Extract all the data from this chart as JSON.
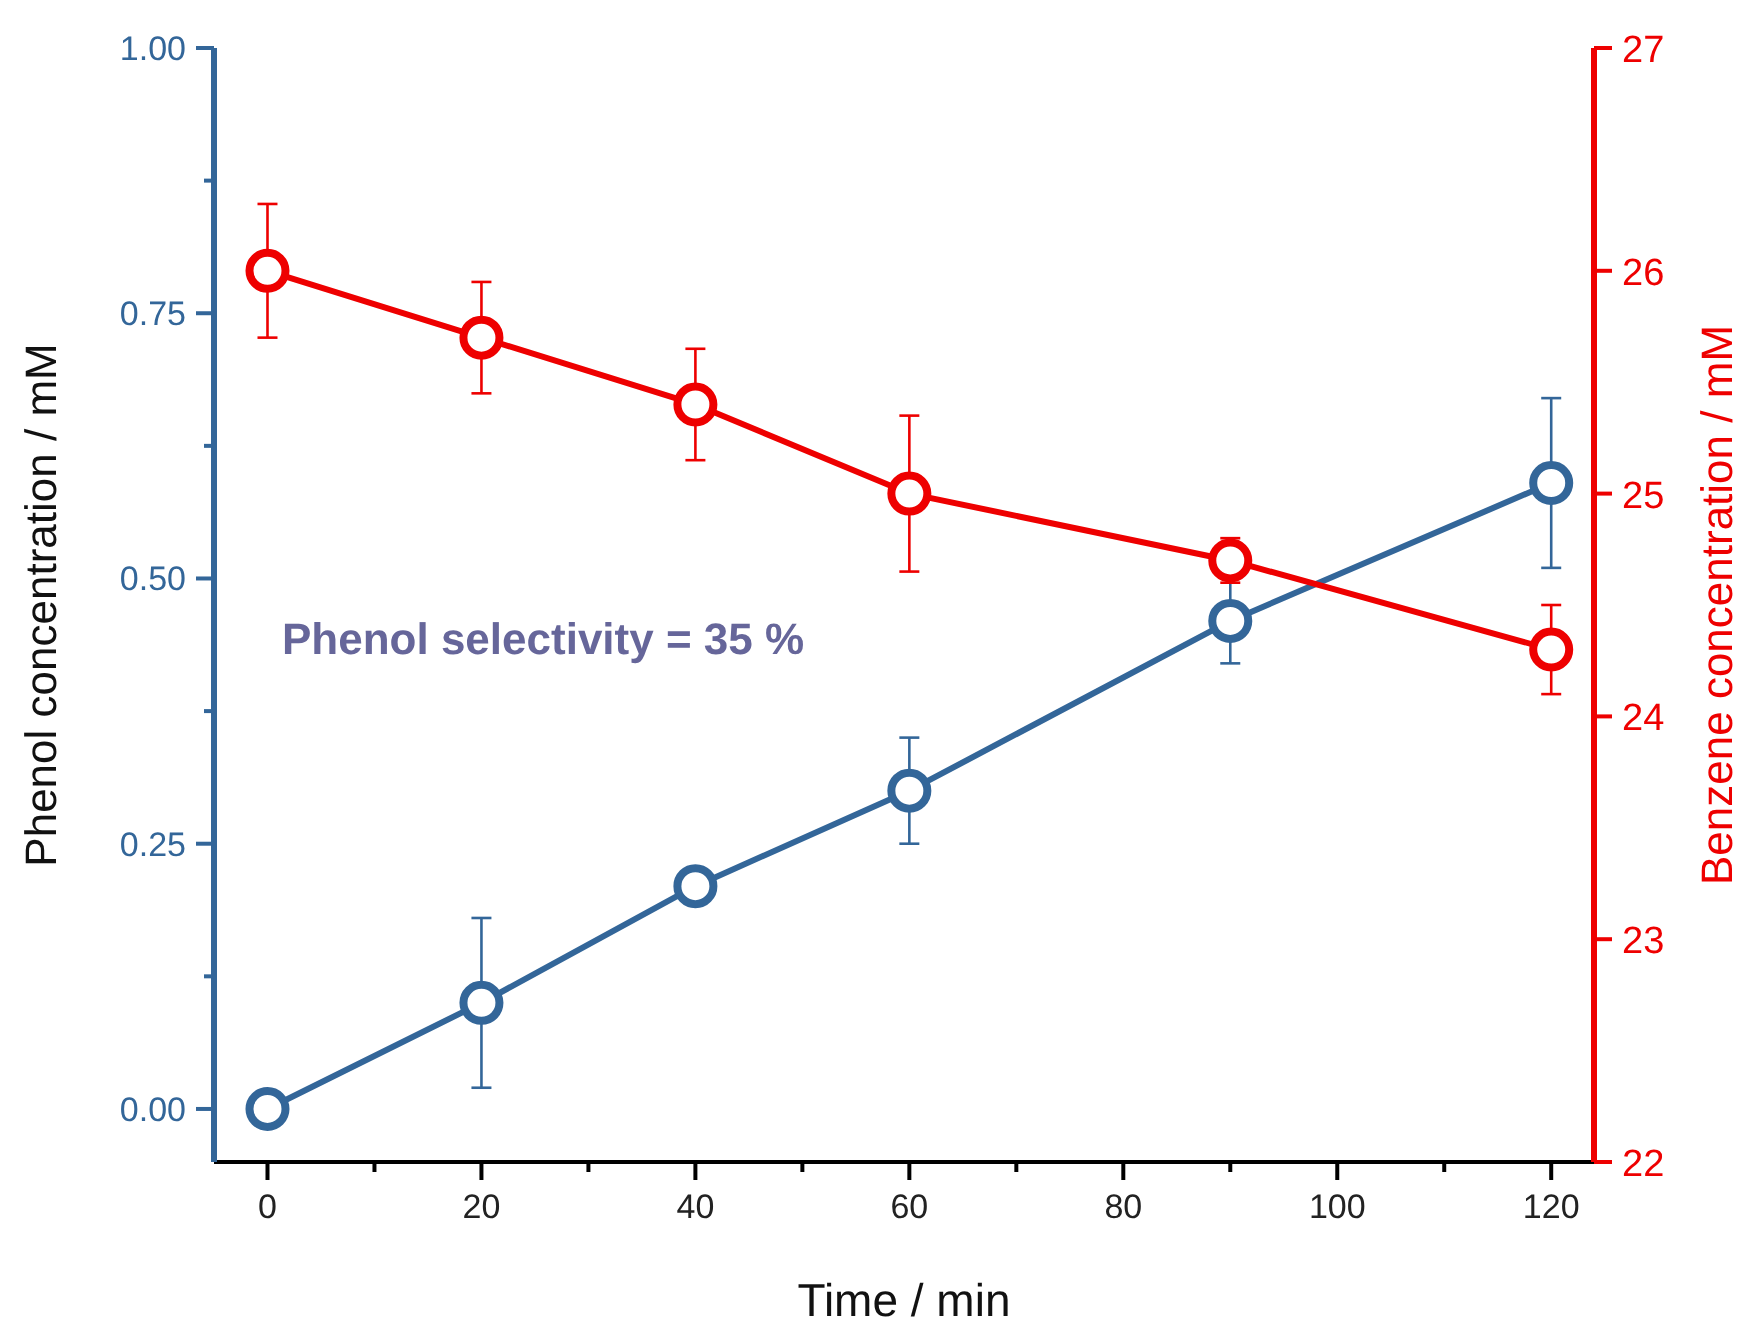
{
  "chart_data": {
    "type": "line",
    "xlabel": "Time / min",
    "ylabel": "Phenol concentration / mM",
    "y2label": "Benzene concentration / mM",
    "x": [
      0,
      20,
      40,
      60,
      90,
      120
    ],
    "xlim": [
      -5,
      124
    ],
    "xticks": [
      0,
      {
        "value": 10,
        "label": null
      },
      20,
      {
        "value": 30,
        "label": null
      },
      40,
      {
        "value": 50,
        "label": null
      },
      60,
      {
        "value": 70,
        "label": null
      },
      80,
      {
        "value": 90,
        "label": null
      },
      100,
      {
        "value": 110,
        "label": null
      },
      120
    ],
    "ylim": [
      -0.05,
      1.0
    ],
    "yticks": [
      {
        "value": 0,
        "label": "0.00"
      },
      {
        "value": 0.125,
        "label": null
      },
      {
        "value": 0.25,
        "label": "0.25"
      },
      {
        "value": 0.375,
        "label": null
      },
      {
        "value": 0.5,
        "label": "0.50"
      },
      {
        "value": 0.625,
        "label": null
      },
      {
        "value": 0.75,
        "label": "0.75"
      },
      {
        "value": 0.875,
        "label": null
      },
      {
        "value": 1,
        "label": "1.00"
      }
    ],
    "y2lim": [
      22,
      27
    ],
    "y2ticks": [
      22,
      23,
      24,
      25,
      26,
      27
    ],
    "marker": "circle",
    "series": [
      {
        "color": "#336699",
        "values": [
          0,
          0.1,
          0.21,
          0.3,
          0.46,
          0.59
        ],
        "errors": [
          null,
          0.08,
          null,
          0.05,
          0.04,
          0.08
        ]
      },
      {
        "color": "#ee0000",
        "axis": "y2",
        "values": [
          26.0,
          25.7,
          25.4,
          25.0,
          24.7,
          24.3
        ],
        "errors": [
          0.3,
          0.25,
          0.25,
          0.35,
          0.1,
          0.2
        ]
      }
    ],
    "annotations": [
      "Phenol selectivity = 35 %"
    ]
  }
}
